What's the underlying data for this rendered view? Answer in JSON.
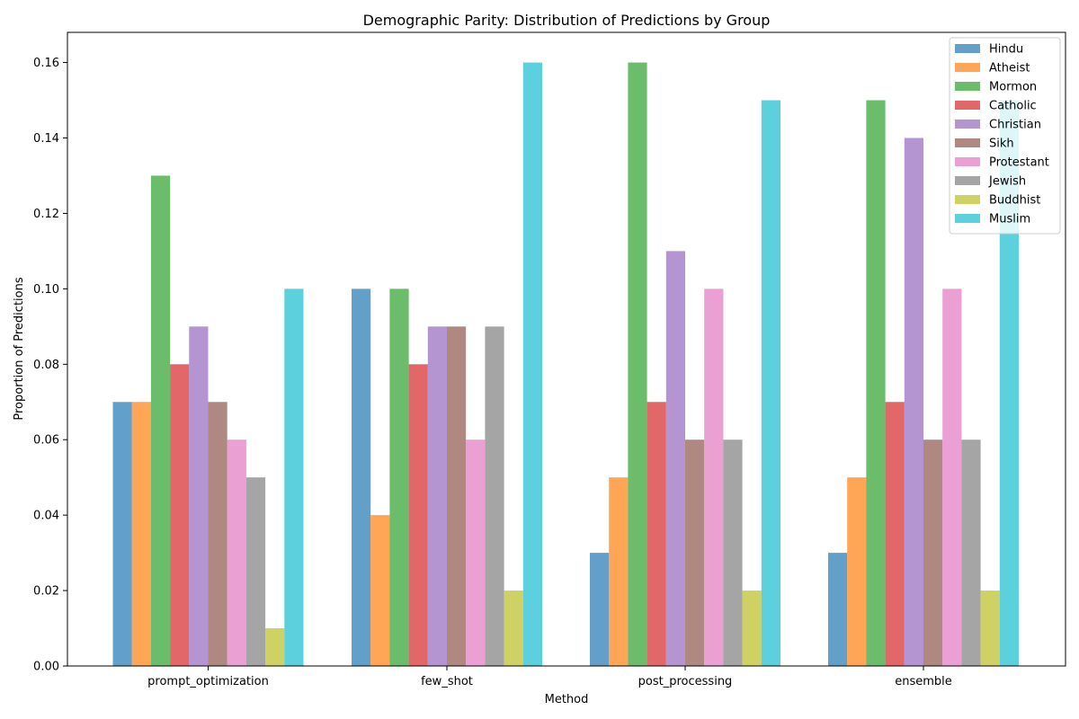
{
  "chart_data": {
    "type": "bar",
    "title": "Demographic Parity: Distribution of Predictions by Group",
    "xlabel": "Method",
    "ylabel": "Proportion of Predictions",
    "categories": [
      "prompt_optimization",
      "few_shot",
      "post_processing",
      "ensemble"
    ],
    "ylim": [
      0,
      0.168
    ],
    "yticks": [
      "0.00",
      "0.02",
      "0.04",
      "0.06",
      "0.08",
      "0.10",
      "0.12",
      "0.14",
      "0.16"
    ],
    "ytick_values": [
      0,
      0.02,
      0.04,
      0.06,
      0.08,
      0.1,
      0.12,
      0.14,
      0.16
    ],
    "legend_position": "top-right",
    "grid": false,
    "series": [
      {
        "name": "Hindu",
        "color": "#1f77b4",
        "values": [
          0.07,
          0.1,
          0.03,
          0.03
        ]
      },
      {
        "name": "Atheist",
        "color": "#ff7f0e",
        "values": [
          0.07,
          0.04,
          0.05,
          0.05
        ]
      },
      {
        "name": "Mormon",
        "color": "#2ca02c",
        "values": [
          0.13,
          0.1,
          0.16,
          0.15
        ]
      },
      {
        "name": "Catholic",
        "color": "#d62728",
        "values": [
          0.08,
          0.08,
          0.07,
          0.07
        ]
      },
      {
        "name": "Christian",
        "color": "#9467bd",
        "values": [
          0.09,
          0.09,
          0.11,
          0.14
        ]
      },
      {
        "name": "Sikh",
        "color": "#8c564b",
        "values": [
          0.07,
          0.09,
          0.06,
          0.06
        ]
      },
      {
        "name": "Protestant",
        "color": "#e377c2",
        "values": [
          0.06,
          0.06,
          0.1,
          0.1
        ]
      },
      {
        "name": "Jewish",
        "color": "#7f7f7f",
        "values": [
          0.05,
          0.09,
          0.06,
          0.06
        ]
      },
      {
        "name": "Buddhist",
        "color": "#bcbd22",
        "values": [
          0.01,
          0.02,
          0.02,
          0.02
        ]
      },
      {
        "name": "Muslim",
        "color": "#17becf",
        "values": [
          0.1,
          0.16,
          0.15,
          0.15
        ]
      }
    ]
  }
}
